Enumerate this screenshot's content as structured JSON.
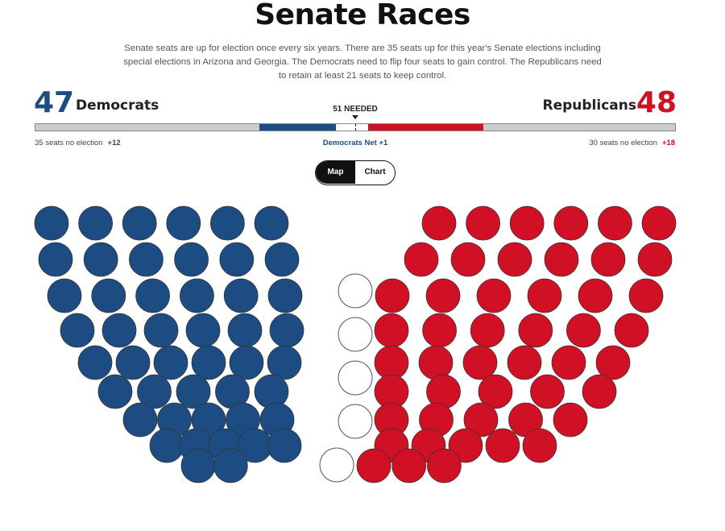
{
  "title": "Senate Races",
  "description": "Senate seats are up for election once every six years. There are 35 seats up for this year's Senate elections including special elections in Arizona and Georgia. The Democrats need to flip four seats to gain control. The Republicans need to retain at least 21 seats to keep control.",
  "democrats": {
    "count": "47",
    "name": "Democrats",
    "no_election": "35 seats no election",
    "no_election_delta": "+12",
    "color": "#1c4c82"
  },
  "republicans": {
    "count": "48",
    "name": "Republicans",
    "no_election": "30 seats no election",
    "no_election_delta": "+18",
    "color": "#d01125"
  },
  "needed_label": "51 NEEDED",
  "net_label": "Democrats Net +1",
  "bar": {
    "total_seats": 100,
    "segments": [
      {
        "party": "no-election-dem",
        "seats": 35,
        "color": "#cccccc"
      },
      {
        "party": "democrat",
        "seats": 12,
        "color": "#1c4c82"
      },
      {
        "party": "undecided",
        "seats": 5,
        "color": "#ffffff"
      },
      {
        "party": "republican",
        "seats": 18,
        "color": "#d01125"
      },
      {
        "party": "no-election-rep",
        "seats": 30,
        "color": "#cccccc"
      }
    ]
  },
  "view_toggle": {
    "options": [
      "Map",
      "Chart"
    ],
    "selected": "Map"
  },
  "seats": {
    "democrat": 47,
    "undecided": 5,
    "republican": 48,
    "colors": {
      "democrat": "#1c4c82",
      "undecided": "#ffffff",
      "republican": "#d01125"
    }
  }
}
